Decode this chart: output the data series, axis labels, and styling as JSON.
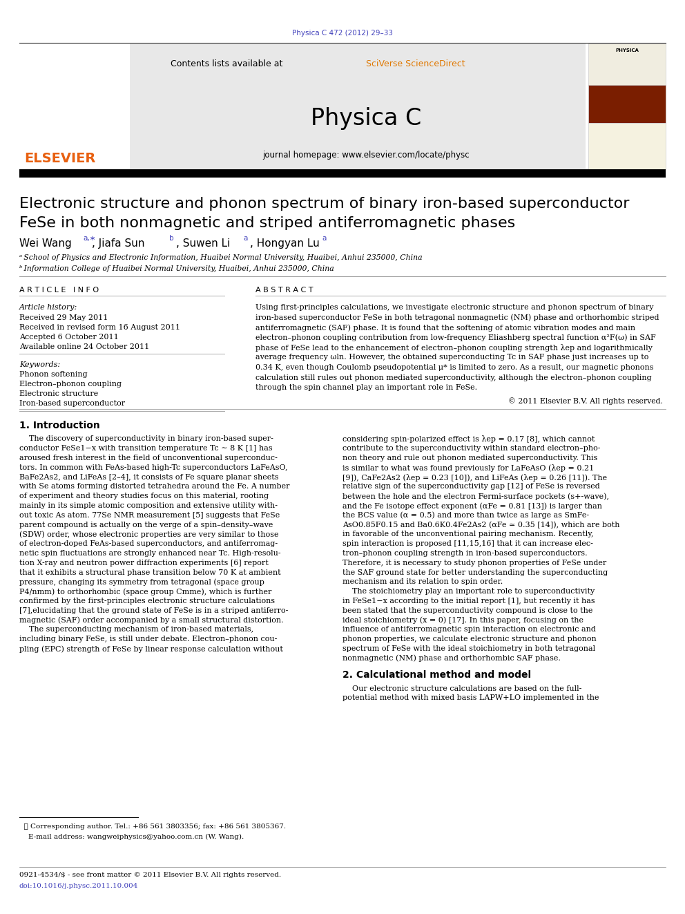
{
  "page_width": 9.92,
  "page_height": 13.23,
  "bg_color": "#ffffff",
  "top_journal_ref": "Physica C 472 (2012) 29–33",
  "top_journal_ref_color": "#4040bb",
  "header_bg": "#e8e8e8",
  "header_sciverse_color": "#e07800",
  "journal_name": "Physica C",
  "journal_homepage": "journal homepage: www.elsevier.com/locate/physc",
  "paper_title_line1": "Electronic structure and phonon spectrum of binary iron-based superconductor",
  "paper_title_line2": "FeSe in both nonmagnetic and striped antiferromagnetic phases",
  "affil_a": "ᵃ School of Physics and Electronic Information, Huaibei Normal University, Huaibei, Anhui 235000, China",
  "affil_b": "ᵇ Information College of Huaibei Normal University, Huaibei, Anhui 235000, China",
  "article_history_label": "Article history:",
  "received": "Received 29 May 2011",
  "revised": "Received in revised form 16 August 2011",
  "accepted": "Accepted 6 October 2011",
  "available": "Available online 24 October 2011",
  "keywords_label": "Keywords:",
  "keywords": [
    "Phonon softening",
    "Electron–phonon coupling",
    "Electronic structure",
    "Iron-based superconductor"
  ],
  "copyright": "© 2011 Elsevier B.V. All rights reserved.",
  "footnote_star": "★ Corresponding author. Tel.: +86 561 3803356; fax: +86 561 3805367.",
  "footnote_email": "    E-mail address: wangweiphysics@yahoo.com.cn (W. Wang).",
  "footer_issn": "0921-4534/$ - see front matter © 2011 Elsevier B.V. All rights reserved.",
  "footer_doi": "doi:10.1016/j.physc.2011.10.004",
  "link_color": "#4040bb",
  "abstract_lines": [
    "Using first-principles calculations, we investigate electronic structure and phonon spectrum of binary",
    "iron-based superconductor FeSe in both tetragonal nonmagnetic (NM) phase and orthorhombic striped",
    "antiferromagnetic (SAF) phase. It is found that the softening of atomic vibration modes and main",
    "electron–phonon coupling contribution from low-frequency Eliashberg spectral function α²F(ω) in SAF",
    "phase of FeSe lead to the enhancement of electron–phonon coupling strength λep and logarithmically",
    "average frequency ωln. However, the obtained superconducting Tc in SAF phase just increases up to",
    "0.34 K, even though Coulomb pseudopotential μ* is limited to zero. As a result, our magnetic phonons",
    "calculation still rules out phonon mediated superconductivity, although the electron–phonon coupling",
    "through the spin channel play an important role in FeSe."
  ],
  "intro_col1_lines": [
    "    The discovery of superconductivity in binary iron-based super-",
    "conductor FeSe1−x with transition temperature Tc ∼ 8 K [1] has",
    "aroused fresh interest in the field of unconventional superconduc-",
    "tors. In common with FeAs-based high-Tc superconductors LaFeAsO,",
    "BaFe2As2, and LiFeAs [2–4], it consists of Fe square planar sheets",
    "with Se atoms forming distorted tetrahedra around the Fe. A number",
    "of experiment and theory studies focus on this material, rooting",
    "mainly in its simple atomic composition and extensive utility with-",
    "out toxic As atom. 77Se NMR measurement [5] suggests that FeSe",
    "parent compound is actually on the verge of a spin–density–wave",
    "(SDW) order, whose electronic properties are very similar to those",
    "of electron-doped FeAs-based superconductors, and antiferromag-",
    "netic spin fluctuations are strongly enhanced near Tc. High-resolu-",
    "tion X-ray and neutron power diffraction experiments [6] report",
    "that it exhibits a structural phase transition below 70 K at ambient",
    "pressure, changing its symmetry from tetragonal (space group",
    "P4/nmm) to orthorhombic (space group Cmme), which is further",
    "confirmed by the first-principles electronic structure calculations",
    "[7],elucidating that the ground state of FeSe is in a striped antiferro-",
    "magnetic (SAF) order accompanied by a small structural distortion.",
    "    The superconducting mechanism of iron-based materials,",
    "including binary FeSe, is still under debate. Electron–phonon cou-",
    "pling (EPC) strength of FeSe by linear response calculation without"
  ],
  "intro_col2_lines": [
    "considering spin-polarized effect is λep = 0.17 [8], which cannot",
    "contribute to the superconductivity within standard electron–pho-",
    "non theory and rule out phonon mediated superconductivity. This",
    "is similar to what was found previously for LaFeAsO (λep = 0.21",
    "[9]), CaFe2As2 (λep = 0.23 [10]), and LiFeAs (λep = 0.26 [11]). The",
    "relative sign of the superconductivity gap [12] of FeSe is reversed",
    "between the hole and the electron Fermi-surface pockets (s+-wave),",
    "and the Fe isotope effect exponent (αFe = 0.81 [13]) is larger than",
    "the BCS value (α = 0.5) and more than twice as large as SmFe-",
    "AsO0.85F0.15 and Ba0.6K0.4Fe2As2 (αFe ≃ 0.35 [14]), which are both",
    "in favorable of the unconventional pairing mechanism. Recently,",
    "spin interaction is proposed [11,15,16] that it can increase elec-",
    "tron–phonon coupling strength in iron-based superconductors.",
    "Therefore, it is necessary to study phonon properties of FeSe under",
    "the SAF ground state for better understanding the superconducting",
    "mechanism and its relation to spin order.",
    "    The stoichiometry play an important role to superconductivity",
    "in FeSe1−x according to the initial report [1], but recently it has",
    "been stated that the superconductivity compound is close to the",
    "ideal stoichiometry (x = 0) [17]. In this paper, focusing on the",
    "influence of antiferromagnetic spin interaction on electronic and",
    "phonon properties, we calculate electronic structure and phonon",
    "spectrum of FeSe with the ideal stoichiometry in both tetragonal",
    "nonmagnetic (NM) phase and orthorhombic SAF phase."
  ],
  "sec2_col2_lines": [
    "    Our electronic structure calculations are based on the full-",
    "potential method with mixed basis LAPW+LO implemented in the"
  ]
}
